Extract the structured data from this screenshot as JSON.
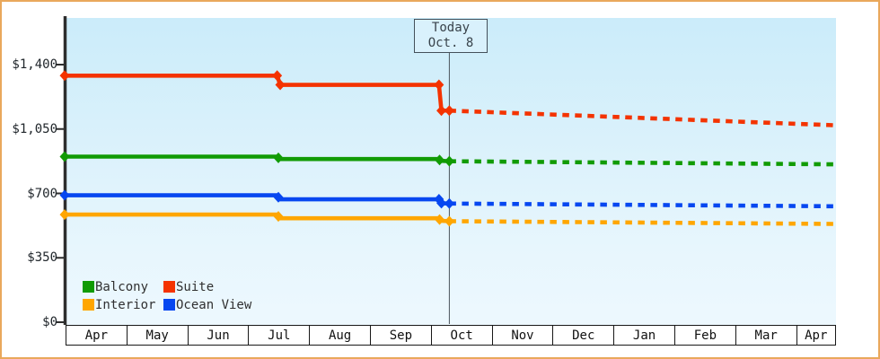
{
  "window": {
    "frame_border_color": "#e9a85c",
    "background_color": "#ffffff"
  },
  "chart_data": {
    "type": "line",
    "title": "",
    "xlabel": "",
    "ylabel": "",
    "ylim": [
      0,
      1400
    ],
    "grid": false,
    "legend_position": "bottom-left",
    "plot_background": {
      "top": "#cbecfa",
      "bottom": "#edf8fe"
    },
    "axis_color": "#2e2e2e",
    "y_ticks": [
      {
        "label": "$1,400",
        "value": 1400
      },
      {
        "label": "$1,050",
        "value": 1050
      },
      {
        "label": "$700",
        "value": 700
      },
      {
        "label": "$350",
        "value": 350
      },
      {
        "label": "$0",
        "value": 0
      }
    ],
    "x_months": [
      "Apr",
      "May",
      "Jun",
      "Jul",
      "Aug",
      "Sep",
      "Oct",
      "Nov",
      "Dec",
      "Jan",
      "Feb",
      "Mar",
      "Apr"
    ],
    "today_marker": {
      "line1": "Today",
      "line2": "Oct. 8",
      "month_position": 6.3,
      "line_color": "#4a545c"
    },
    "series": [
      {
        "name": "Suite",
        "color": "#f43300",
        "history": [
          [
            0,
            1340
          ],
          [
            3.48,
            1340
          ],
          [
            3.53,
            1290
          ],
          [
            6.13,
            1290
          ],
          [
            6.17,
            1150
          ],
          [
            6.3,
            1150
          ]
        ],
        "forecast": [
          [
            6.3,
            1150
          ],
          [
            12.64,
            1070
          ]
        ],
        "markers": [
          [
            0,
            1340
          ],
          [
            3.48,
            1340
          ],
          [
            3.53,
            1290
          ],
          [
            6.13,
            1290
          ],
          [
            6.17,
            1150
          ],
          [
            6.3,
            1150
          ]
        ]
      },
      {
        "name": "Balcony",
        "color": "#119b04",
        "history": [
          [
            0,
            900
          ],
          [
            3.48,
            900
          ],
          [
            3.53,
            887
          ],
          [
            6.13,
            887
          ],
          [
            6.17,
            877
          ],
          [
            6.3,
            875
          ]
        ],
        "forecast": [
          [
            6.3,
            875
          ],
          [
            12.64,
            858
          ]
        ],
        "markers": [
          [
            0,
            900
          ],
          [
            3.5,
            893
          ],
          [
            6.14,
            882
          ],
          [
            6.3,
            875
          ]
        ]
      },
      {
        "name": "Ocean View",
        "color": "#0747f0",
        "history": [
          [
            0,
            690
          ],
          [
            3.48,
            690
          ],
          [
            3.53,
            668
          ],
          [
            6.13,
            668
          ],
          [
            6.17,
            647
          ],
          [
            6.3,
            645
          ]
        ],
        "forecast": [
          [
            6.3,
            645
          ],
          [
            12.64,
            630
          ]
        ],
        "markers": [
          [
            0,
            690
          ],
          [
            3.5,
            679
          ],
          [
            6.13,
            668
          ],
          [
            6.17,
            647
          ],
          [
            6.3,
            645
          ]
        ]
      },
      {
        "name": "Interior",
        "color": "#ffa600",
        "history": [
          [
            0,
            585
          ],
          [
            3.48,
            585
          ],
          [
            3.53,
            565
          ],
          [
            6.13,
            565
          ],
          [
            6.17,
            551
          ],
          [
            6.3,
            549
          ]
        ],
        "forecast": [
          [
            6.3,
            549
          ],
          [
            12.64,
            534
          ]
        ],
        "markers": [
          [
            0,
            585
          ],
          [
            3.5,
            575
          ],
          [
            6.14,
            558
          ],
          [
            6.3,
            549
          ]
        ]
      }
    ],
    "legend": {
      "items": [
        {
          "label": "Balcony",
          "color": "#119b04"
        },
        {
          "label": "Suite",
          "color": "#f43300"
        },
        {
          "label": "Interior",
          "color": "#ffa600"
        },
        {
          "label": "Ocean View",
          "color": "#0747f0"
        }
      ]
    }
  }
}
